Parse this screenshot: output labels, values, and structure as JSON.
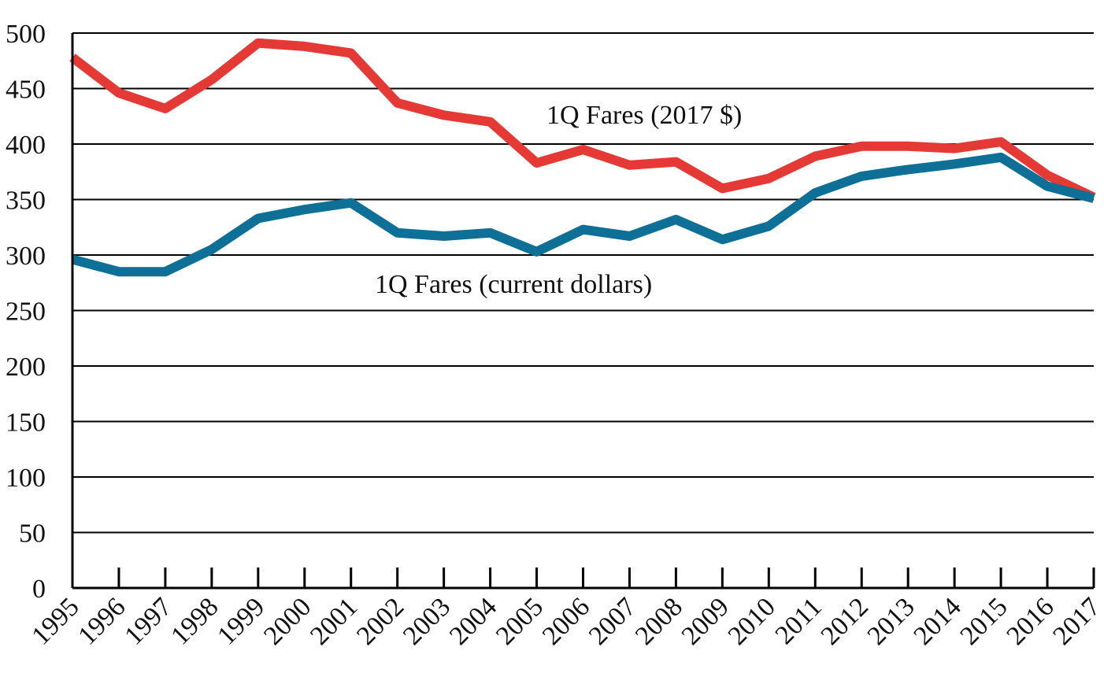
{
  "chart_data": {
    "type": "line",
    "title": "",
    "xlabel": "",
    "ylabel": "",
    "ylim": [
      0,
      500
    ],
    "yticks": [
      0,
      50,
      100,
      150,
      200,
      250,
      300,
      350,
      400,
      450,
      500
    ],
    "grid": true,
    "legend": "none",
    "categories": [
      "1995",
      "1996",
      "1997",
      "1998",
      "1999",
      "2000",
      "2001",
      "2002",
      "2003",
      "2004",
      "2005",
      "2006",
      "2007",
      "2008",
      "2009",
      "2010",
      "2011",
      "2012",
      "2013",
      "2014",
      "2015",
      "2016",
      "2017"
    ],
    "series": [
      {
        "name": "1Q Fares (2017 $)",
        "color": "#e53935",
        "values": [
          478,
          446,
          432,
          458,
          491,
          488,
          482,
          437,
          426,
          420,
          383,
          395,
          381,
          384,
          360,
          369,
          389,
          398,
          398,
          396,
          402,
          372,
          352
        ]
      },
      {
        "name": "1Q Fares (current dollars)",
        "color": "#0e7096",
        "values": [
          296,
          285,
          285,
          305,
          333,
          341,
          347,
          320,
          317,
          320,
          303,
          323,
          317,
          332,
          314,
          326,
          356,
          371,
          377,
          382,
          388,
          362,
          351
        ]
      }
    ]
  }
}
